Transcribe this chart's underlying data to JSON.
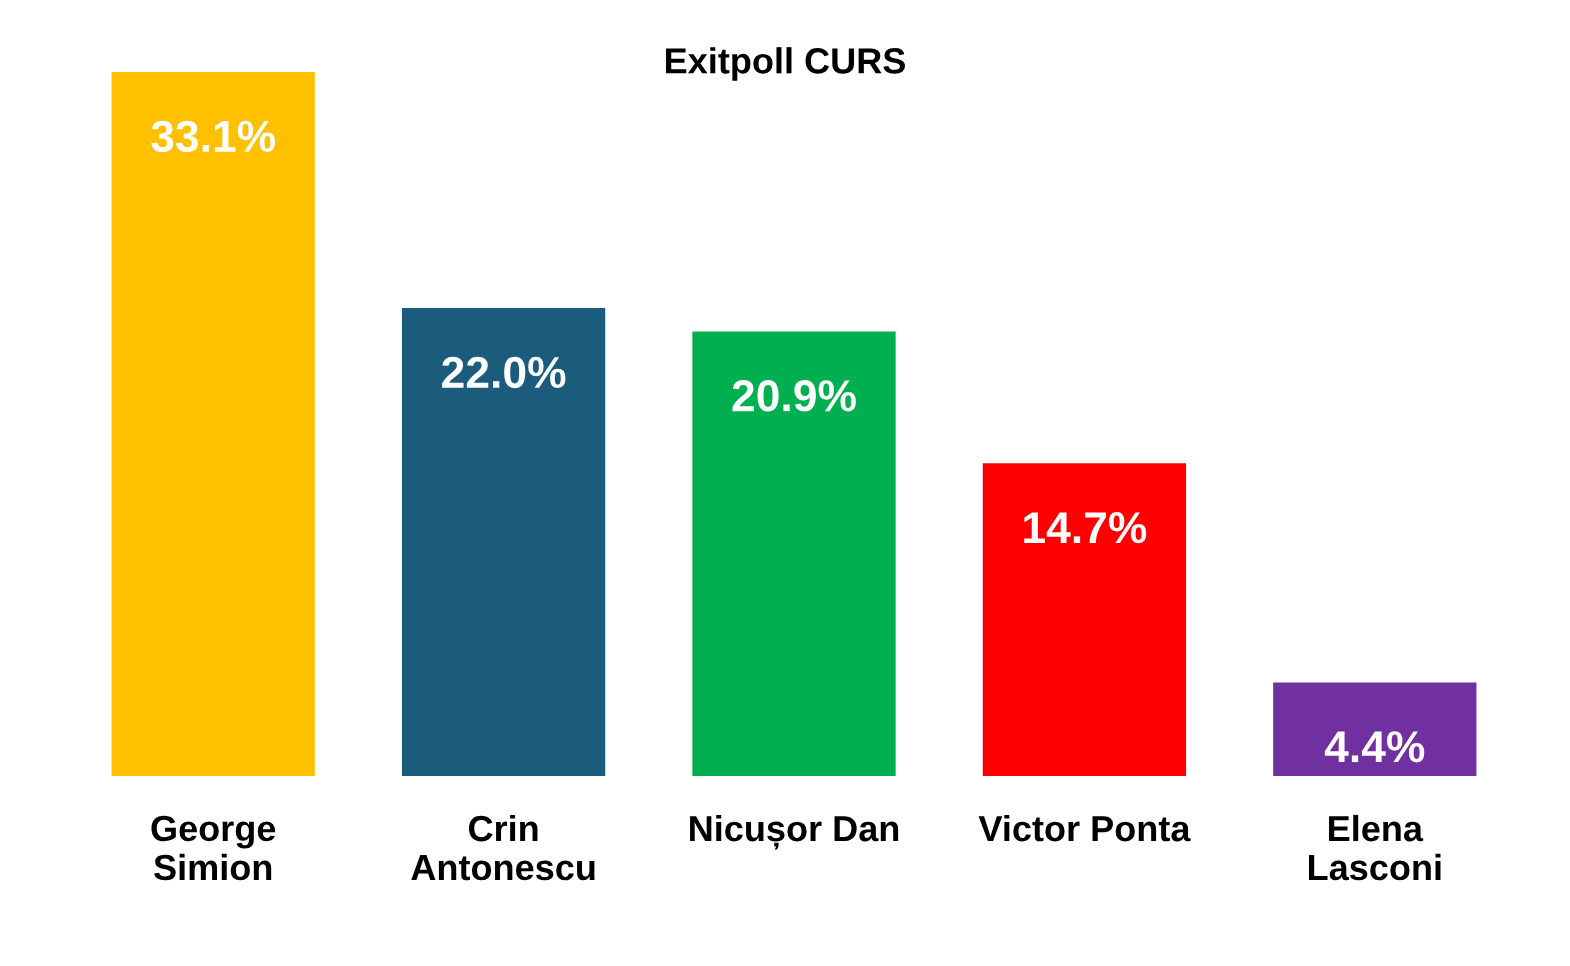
{
  "chart_data": {
    "type": "bar",
    "title": "Exitpoll CURS",
    "categories": [
      "George\nSimion",
      "Crin\nAntonescu",
      "Nicușor Dan",
      "Victor Ponta",
      "Elena\nLasconi"
    ],
    "values": [
      33.1,
      22.0,
      20.9,
      14.7,
      4.4
    ],
    "colors": [
      "#ffc000",
      "#1b5c7c",
      "#00b050",
      "#ff0000",
      "#7030a0"
    ],
    "value_labels": [
      "33.1%",
      "22.0%",
      "20.9%",
      "14.7%",
      "4.4%"
    ],
    "grid": false,
    "legend": false
  }
}
